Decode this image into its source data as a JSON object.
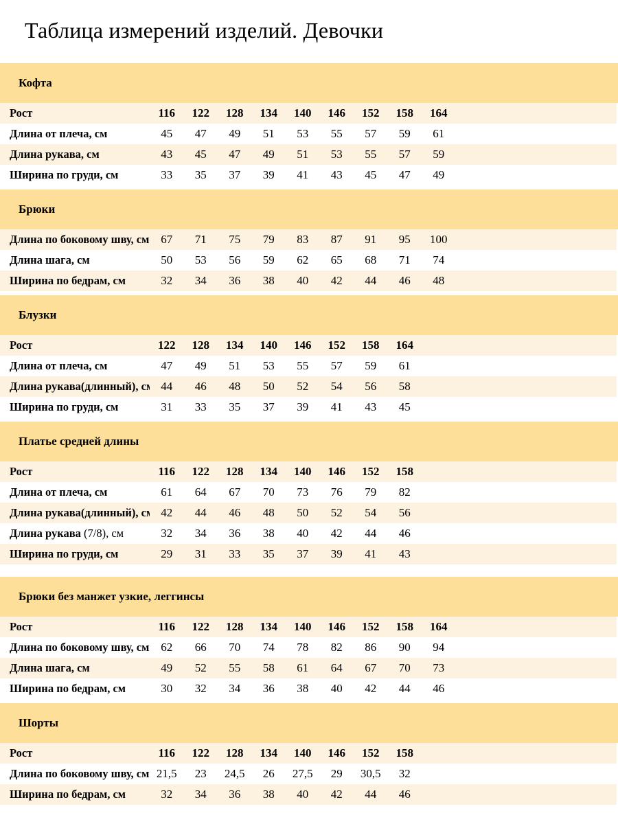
{
  "page": {
    "title": "Таблица измерений изделий. Девочки"
  },
  "colors": {
    "band": "#FDDF99",
    "row_alt": "#FDF1E0",
    "row_white": "#FFFFFF",
    "text": "#000000"
  },
  "sections": [
    {
      "title": "Кофта",
      "rows": [
        {
          "label": "Рост",
          "bold_values": true,
          "values": [
            "116",
            "122",
            "128",
            "134",
            "140",
            "146",
            "152",
            "158",
            "164"
          ]
        },
        {
          "label": "Длина от плеча, см",
          "values": [
            "45",
            "47",
            "49",
            "51",
            "53",
            "55",
            "57",
            "59",
            "61"
          ]
        },
        {
          "label": "Длина рукава, см",
          "values": [
            "43",
            "45",
            "47",
            "49",
            "51",
            "53",
            "55",
            "57",
            "59"
          ]
        },
        {
          "label": "Ширина по груди, см",
          "values": [
            "33",
            "35",
            "37",
            "39",
            "41",
            "43",
            "45",
            "47",
            "49"
          ]
        }
      ]
    },
    {
      "title": "Брюки",
      "rows": [
        {
          "label": "Длина по боковому шву, см",
          "values": [
            "67",
            "71",
            "75",
            "79",
            "83",
            "87",
            "91",
            "95",
            "100"
          ]
        },
        {
          "label": "Длина шага, см",
          "values": [
            "50",
            "53",
            "56",
            "59",
            "62",
            "65",
            "68",
            "71",
            "74"
          ]
        },
        {
          "label": "Ширина по бедрам, см",
          "values": [
            "32",
            "34",
            "36",
            "38",
            "40",
            "42",
            "44",
            "46",
            "48"
          ]
        }
      ]
    },
    {
      "title": "Блузки",
      "rows": [
        {
          "label": "Рост",
          "bold_values": true,
          "values": [
            "122",
            "128",
            "134",
            "140",
            "146",
            "152",
            "158",
            "164"
          ]
        },
        {
          "label": "Длина от плеча, см",
          "values": [
            "47",
            "49",
            "51",
            "53",
            "55",
            "57",
            "59",
            "61"
          ]
        },
        {
          "label": "Длина рукава(длинный), см",
          "values": [
            "44",
            "46",
            "48",
            "50",
            "52",
            "54",
            "56",
            "58"
          ]
        },
        {
          "label": "Ширина по груди, см",
          "values": [
            "31",
            "33",
            "35",
            "37",
            "39",
            "41",
            "43",
            "45"
          ]
        }
      ]
    },
    {
      "title": "Платье средней длины",
      "rows": [
        {
          "label": "Рост",
          "bold_values": true,
          "values": [
            "116",
            "122",
            "128",
            "134",
            "140",
            "146",
            "152",
            "158"
          ]
        },
        {
          "label": "Длина от плеча, см",
          "values": [
            "61",
            "64",
            "67",
            "70",
            "73",
            "76",
            "79",
            "82"
          ]
        },
        {
          "label": "Длина рукава(длинный), см",
          "values": [
            "42",
            "44",
            "46",
            "48",
            "50",
            "52",
            "54",
            "56"
          ]
        },
        {
          "label": "Длина рукава",
          "label_light": " (7/8), см",
          "values": [
            "32",
            "34",
            "36",
            "38",
            "40",
            "42",
            "44",
            "46"
          ]
        },
        {
          "label": "Ширина по груди, см",
          "values": [
            "29",
            "31",
            "33",
            "35",
            "37",
            "39",
            "41",
            "43"
          ]
        }
      ]
    },
    {
      "title": "Брюки без манжет узкие, леггинсы",
      "gap_large": true,
      "rows": [
        {
          "label": "Рост",
          "bold_values": true,
          "values": [
            "116",
            "122",
            "128",
            "134",
            "140",
            "146",
            "152",
            "158",
            "164"
          ]
        },
        {
          "label": "Длина по боковому шву, см",
          "values": [
            "62",
            "66",
            "70",
            "74",
            "78",
            "82",
            "86",
            "90",
            "94"
          ]
        },
        {
          "label": "Длина шага, см",
          "values": [
            "49",
            "52",
            "55",
            "58",
            "61",
            "64",
            "67",
            "70",
            "73"
          ]
        },
        {
          "label": "Ширина по бедрам, см",
          "values": [
            "30",
            "32",
            "34",
            "36",
            "38",
            "40",
            "42",
            "44",
            "46"
          ]
        }
      ]
    },
    {
      "title": "Шорты",
      "rows": [
        {
          "label": "Рост",
          "bold_values": true,
          "values": [
            "116",
            "122",
            "128",
            "134",
            "140",
            "146",
            "152",
            "158"
          ]
        },
        {
          "label": "Длина по боковому шву, см",
          "values": [
            "21,5",
            "23",
            "24,5",
            "26",
            "27,5",
            "29",
            "30,5",
            "32"
          ]
        },
        {
          "label": "Ширина по бедрам, см",
          "values": [
            "32",
            "34",
            "36",
            "38",
            "40",
            "42",
            "44",
            "46"
          ]
        }
      ]
    }
  ]
}
